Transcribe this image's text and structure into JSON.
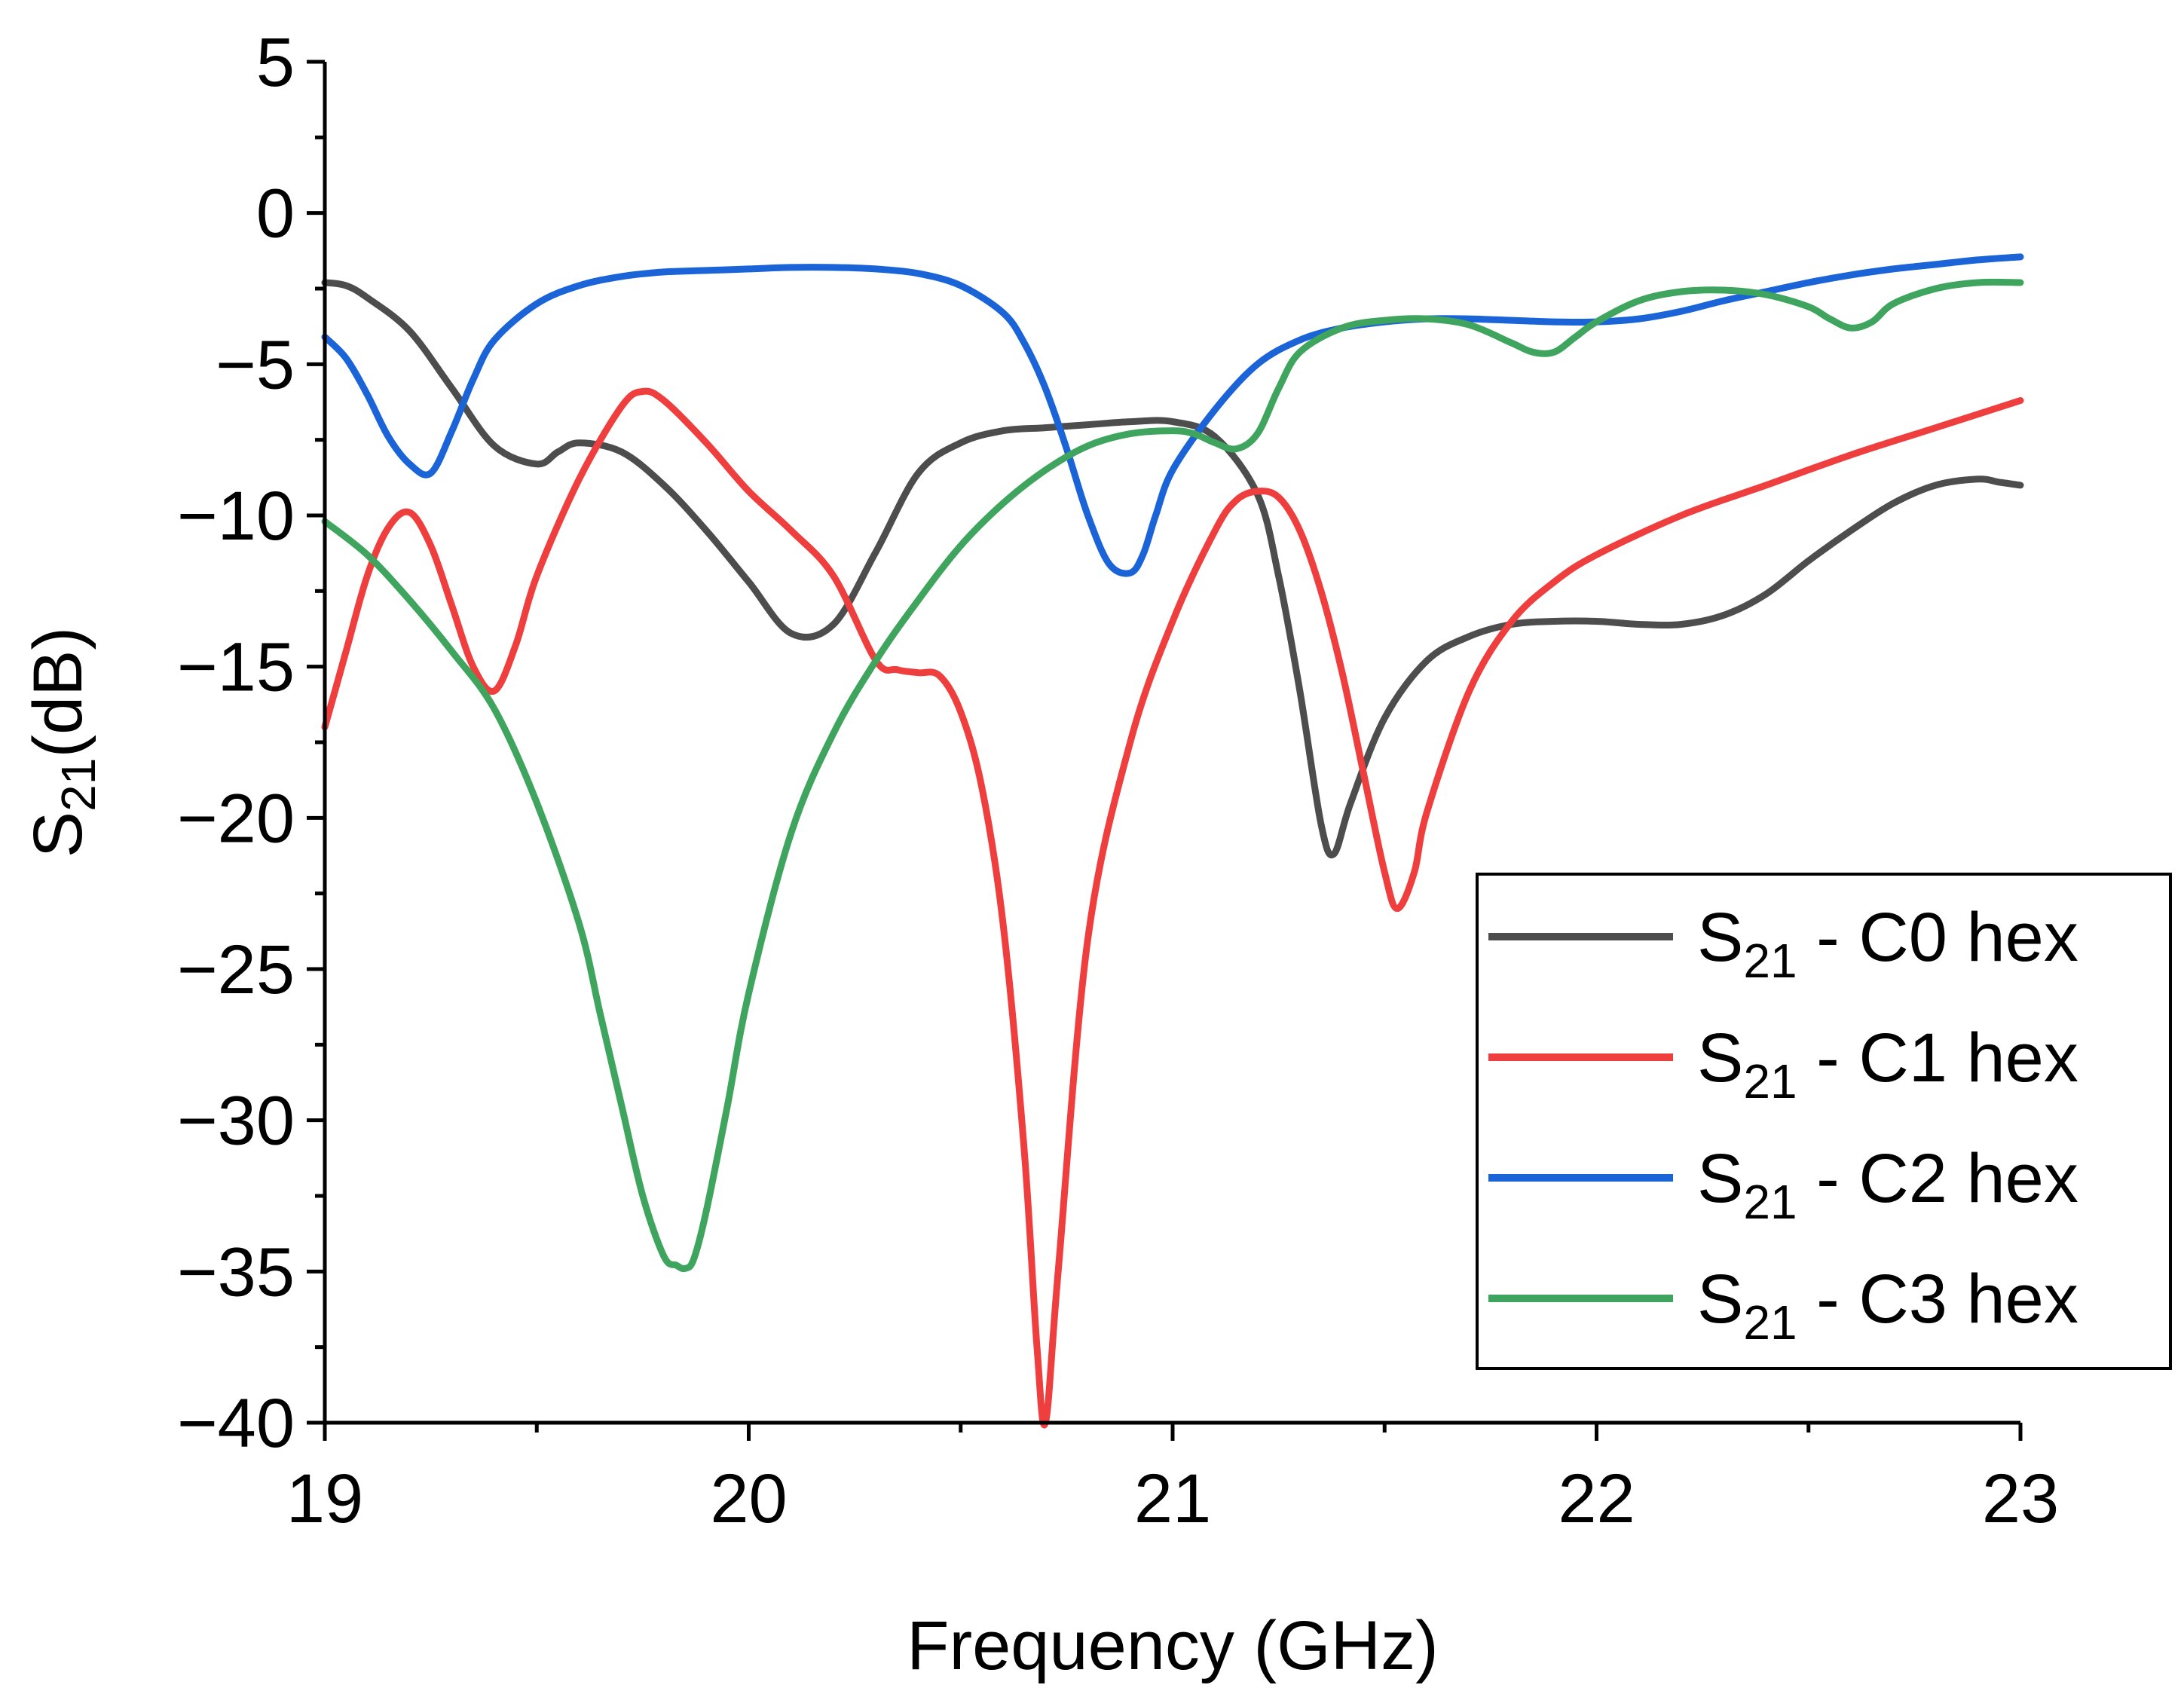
{
  "chart_data": {
    "type": "line",
    "title": "",
    "xlabel": "Frequency (GHz)",
    "ylabel": "S21(dB)",
    "ylabel_base": "S",
    "ylabel_sub": "21",
    "ylabel_rest": "(dB)",
    "xlim": [
      19,
      23
    ],
    "ylim": [
      -40,
      5
    ],
    "x_ticks": [
      19,
      20,
      21,
      22,
      23
    ],
    "x_tick_labels": [
      "19",
      "20",
      "21",
      "22",
      "23"
    ],
    "y_ticks": [
      5,
      0,
      -5,
      -10,
      -15,
      -20,
      -25,
      -30,
      -35,
      -40
    ],
    "y_tick_labels": [
      "5",
      "0",
      "−5",
      "−10",
      "−15",
      "−20",
      "−25",
      "−30",
      "−35",
      "−40"
    ],
    "grid": false,
    "legend_position": "bottom-right",
    "series": [
      {
        "name": "S21 - C0 hex",
        "label_base": "S",
        "label_sub": "21",
        "label_rest": " - C0 hex",
        "color": "#4d4d4d",
        "x": [
          19.0,
          19.05,
          19.1,
          19.2,
          19.3,
          19.4,
          19.5,
          19.55,
          19.6,
          19.7,
          19.8,
          19.9,
          20.0,
          20.1,
          20.2,
          20.3,
          20.4,
          20.5,
          20.6,
          20.7,
          20.8,
          20.9,
          21.0,
          21.1,
          21.2,
          21.25,
          21.3,
          21.35,
          21.38,
          21.42,
          21.5,
          21.6,
          21.7,
          21.8,
          21.9,
          22.0,
          22.1,
          22.2,
          22.3,
          22.4,
          22.5,
          22.6,
          22.7,
          22.8,
          22.9,
          22.95,
          23.0
        ],
        "y": [
          -2.3,
          -2.4,
          -2.8,
          -3.9,
          -5.8,
          -7.7,
          -8.3,
          -7.9,
          -7.6,
          -7.9,
          -9.0,
          -10.5,
          -12.2,
          -13.9,
          -13.6,
          -11.2,
          -8.6,
          -7.6,
          -7.2,
          -7.1,
          -7.0,
          -6.9,
          -6.9,
          -7.4,
          -9.3,
          -12.0,
          -15.8,
          -20.2,
          -21.2,
          -19.5,
          -16.7,
          -14.8,
          -14.0,
          -13.6,
          -13.5,
          -13.5,
          -13.6,
          -13.6,
          -13.3,
          -12.6,
          -11.5,
          -10.5,
          -9.6,
          -9.0,
          -8.8,
          -8.9,
          -9.0
        ]
      },
      {
        "name": "S21 - C1 hex",
        "label_base": "S",
        "label_sub": "21",
        "label_rest": " - C1 hex",
        "color": "#ee3e3e",
        "x": [
          19.0,
          19.05,
          19.1,
          19.15,
          19.2,
          19.25,
          19.3,
          19.35,
          19.4,
          19.45,
          19.5,
          19.6,
          19.7,
          19.75,
          19.8,
          19.9,
          20.0,
          20.1,
          20.2,
          20.3,
          20.35,
          20.4,
          20.45,
          20.5,
          20.55,
          20.6,
          20.65,
          20.68,
          20.7,
          20.73,
          20.8,
          20.9,
          21.0,
          21.1,
          21.15,
          21.2,
          21.25,
          21.3,
          21.35,
          21.4,
          21.45,
          21.5,
          21.53,
          21.57,
          21.6,
          21.7,
          21.8,
          21.9,
          22.0,
          22.2,
          22.4,
          22.6,
          22.8,
          23.0
        ],
        "y": [
          -17.0,
          -14.5,
          -12.0,
          -10.4,
          -9.9,
          -11.0,
          -13.0,
          -15.0,
          -15.8,
          -14.3,
          -12.0,
          -8.8,
          -6.4,
          -5.9,
          -6.2,
          -7.6,
          -9.2,
          -10.5,
          -12.0,
          -14.8,
          -15.1,
          -15.2,
          -15.3,
          -16.5,
          -19.0,
          -23.5,
          -31.0,
          -37.5,
          -40.0,
          -35.0,
          -24.0,
          -17.5,
          -13.5,
          -10.5,
          -9.5,
          -9.2,
          -9.4,
          -10.5,
          -12.5,
          -15.2,
          -18.5,
          -21.8,
          -23.0,
          -21.8,
          -19.8,
          -15.8,
          -13.5,
          -12.2,
          -11.3,
          -10.0,
          -9.0,
          -8.0,
          -7.1,
          -6.2
        ]
      },
      {
        "name": "S21 - C2 hex",
        "label_base": "S",
        "label_sub": "21",
        "label_rest": " - C2 hex",
        "color": "#1a64d8",
        "x": [
          19.0,
          19.05,
          19.1,
          19.15,
          19.2,
          19.25,
          19.3,
          19.35,
          19.4,
          19.5,
          19.6,
          19.7,
          19.8,
          19.9,
          20.0,
          20.1,
          20.2,
          20.3,
          20.4,
          20.5,
          20.6,
          20.65,
          20.7,
          20.75,
          20.8,
          20.85,
          20.9,
          20.93,
          20.96,
          21.0,
          21.1,
          21.2,
          21.3,
          21.4,
          21.5,
          21.6,
          21.7,
          21.8,
          21.9,
          22.0,
          22.1,
          22.2,
          22.3,
          22.4,
          22.5,
          22.6,
          22.7,
          22.8,
          22.9,
          23.0
        ],
        "y": [
          -4.1,
          -4.8,
          -6.0,
          -7.4,
          -8.3,
          -8.6,
          -7.2,
          -5.5,
          -4.2,
          -3.0,
          -2.4,
          -2.1,
          -1.95,
          -1.9,
          -1.85,
          -1.8,
          -1.8,
          -1.85,
          -2.0,
          -2.4,
          -3.3,
          -4.3,
          -5.8,
          -7.8,
          -10.0,
          -11.6,
          -11.9,
          -11.3,
          -10.0,
          -8.5,
          -6.5,
          -5.0,
          -4.2,
          -3.8,
          -3.6,
          -3.5,
          -3.5,
          -3.55,
          -3.6,
          -3.6,
          -3.5,
          -3.25,
          -2.9,
          -2.6,
          -2.3,
          -2.05,
          -1.85,
          -1.7,
          -1.55,
          -1.45
        ]
      },
      {
        "name": "S21 - C3 hex",
        "label_base": "S",
        "label_sub": "21",
        "label_rest": " - C3 hex",
        "color": "#3fa55e",
        "x": [
          19.0,
          19.1,
          19.2,
          19.3,
          19.4,
          19.5,
          19.6,
          19.65,
          19.7,
          19.75,
          19.8,
          19.83,
          19.85,
          19.87,
          19.9,
          19.95,
          20.0,
          20.1,
          20.2,
          20.3,
          20.4,
          20.5,
          20.6,
          20.7,
          20.8,
          20.9,
          21.0,
          21.05,
          21.1,
          21.15,
          21.2,
          21.25,
          21.3,
          21.4,
          21.5,
          21.6,
          21.7,
          21.8,
          21.85,
          21.9,
          21.95,
          22.0,
          22.1,
          22.2,
          22.3,
          22.4,
          22.5,
          22.55,
          22.6,
          22.65,
          22.7,
          22.8,
          22.9,
          23.0
        ],
        "y": [
          -10.2,
          -11.3,
          -12.8,
          -14.5,
          -16.4,
          -19.5,
          -23.5,
          -26.5,
          -29.5,
          -32.5,
          -34.5,
          -34.8,
          -34.9,
          -34.6,
          -33.0,
          -29.5,
          -25.8,
          -20.5,
          -17.2,
          -14.8,
          -12.8,
          -11.0,
          -9.6,
          -8.5,
          -7.7,
          -7.3,
          -7.2,
          -7.3,
          -7.6,
          -7.8,
          -7.3,
          -5.8,
          -4.6,
          -3.8,
          -3.55,
          -3.5,
          -3.7,
          -4.3,
          -4.6,
          -4.6,
          -4.1,
          -3.6,
          -2.9,
          -2.6,
          -2.55,
          -2.7,
          -3.1,
          -3.5,
          -3.8,
          -3.6,
          -3.0,
          -2.5,
          -2.3,
          -2.3
        ]
      }
    ]
  }
}
